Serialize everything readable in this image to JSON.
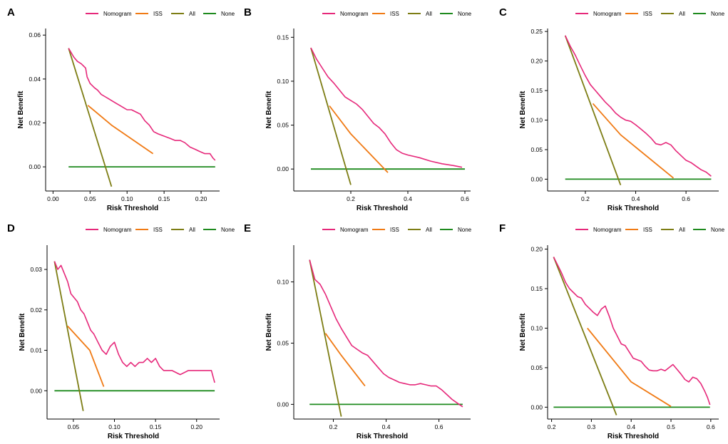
{
  "colors": {
    "Nomogram": "#e6287a",
    "ISS": "#f07a14",
    "All": "#7d7d14",
    "None": "#1e8a1e"
  },
  "chart_data": [
    {
      "panel": "A",
      "type": "line",
      "xlabel": "Risk Threshold",
      "ylabel": "Net Benefit",
      "xlim": [
        -0.01,
        0.225
      ],
      "ylim": [
        -0.011,
        0.063
      ],
      "xticks": [
        "0.00",
        "0.05",
        "0.10",
        "0.15",
        "0.20"
      ],
      "xtick_values": [
        0.0,
        0.05,
        0.1,
        0.15,
        0.2
      ],
      "yticks": [
        "0.00",
        "0.02",
        "0.04",
        "0.06"
      ],
      "ytick_values": [
        0.0,
        0.02,
        0.04,
        0.06
      ],
      "legend": [
        "Nomogram",
        "ISS",
        "All",
        "None"
      ],
      "series": [
        {
          "name": "Nomogram",
          "x": [
            0.021,
            0.028,
            0.033,
            0.038,
            0.044,
            0.046,
            0.05,
            0.056,
            0.06,
            0.065,
            0.07,
            0.075,
            0.08,
            0.085,
            0.09,
            0.095,
            0.1,
            0.106,
            0.112,
            0.118,
            0.124,
            0.13,
            0.136,
            0.142,
            0.15,
            0.158,
            0.165,
            0.172,
            0.178,
            0.185,
            0.192,
            0.198,
            0.205,
            0.212,
            0.216,
            0.219
          ],
          "y": [
            0.054,
            0.05,
            0.048,
            0.047,
            0.045,
            0.041,
            0.038,
            0.036,
            0.035,
            0.033,
            0.032,
            0.031,
            0.03,
            0.029,
            0.028,
            0.027,
            0.026,
            0.026,
            0.025,
            0.024,
            0.021,
            0.019,
            0.016,
            0.015,
            0.014,
            0.013,
            0.012,
            0.012,
            0.011,
            0.009,
            0.008,
            0.007,
            0.006,
            0.006,
            0.004,
            0.003
          ]
        },
        {
          "name": "ISS",
          "x": [
            0.047,
            0.079,
            0.135
          ],
          "y": [
            0.028,
            0.019,
            0.006
          ]
        },
        {
          "name": "All",
          "x": [
            0.021,
            0.079
          ],
          "y": [
            0.054,
            -0.009
          ]
        },
        {
          "name": "None",
          "x": [
            0.021,
            0.219
          ],
          "y": [
            0.0,
            0.0
          ]
        }
      ]
    },
    {
      "panel": "B",
      "type": "line",
      "xlabel": "Risk Threshold",
      "ylabel": "Net Benefit",
      "xlim": [
        0.0,
        0.62
      ],
      "ylim": [
        -0.025,
        0.16
      ],
      "xticks": [
        "0.2",
        "0.4",
        "0.6"
      ],
      "xtick_values": [
        0.2,
        0.4,
        0.6
      ],
      "yticks": [
        "0.00",
        "0.05",
        "0.10",
        "0.15"
      ],
      "ytick_values": [
        0.0,
        0.05,
        0.1,
        0.15
      ],
      "legend": [
        "Nomogram",
        "ISS",
        "All",
        "None"
      ],
      "series": [
        {
          "name": "Nomogram",
          "x": [
            0.06,
            0.08,
            0.1,
            0.12,
            0.14,
            0.16,
            0.18,
            0.2,
            0.22,
            0.24,
            0.26,
            0.28,
            0.3,
            0.32,
            0.34,
            0.36,
            0.38,
            0.4,
            0.44,
            0.48,
            0.52,
            0.56,
            0.59
          ],
          "y": [
            0.138,
            0.125,
            0.115,
            0.105,
            0.098,
            0.09,
            0.082,
            0.078,
            0.074,
            0.068,
            0.06,
            0.052,
            0.047,
            0.04,
            0.03,
            0.022,
            0.018,
            0.016,
            0.013,
            0.009,
            0.006,
            0.004,
            0.002
          ]
        },
        {
          "name": "ISS",
          "x": [
            0.125,
            0.2,
            0.33
          ],
          "y": [
            0.072,
            0.04,
            -0.004
          ]
        },
        {
          "name": "All",
          "x": [
            0.06,
            0.2
          ],
          "y": [
            0.138,
            -0.018
          ]
        },
        {
          "name": "None",
          "x": [
            0.06,
            0.6
          ],
          "y": [
            0.0,
            0.0
          ]
        }
      ]
    },
    {
      "panel": "C",
      "type": "line",
      "xlabel": "Risk Threshold",
      "ylabel": "Net Benefit",
      "xlim": [
        0.05,
        0.73
      ],
      "ylim": [
        -0.02,
        0.255
      ],
      "xticks": [
        "0.2",
        "0.4",
        "0.6"
      ],
      "xtick_values": [
        0.2,
        0.4,
        0.6
      ],
      "yticks": [
        "0.00",
        "0.05",
        "0.10",
        "0.15",
        "0.20",
        "0.25"
      ],
      "ytick_values": [
        0.0,
        0.05,
        0.1,
        0.15,
        0.2,
        0.25
      ],
      "legend": [
        "Nomogram",
        "ISS",
        "All",
        "None"
      ],
      "series": [
        {
          "name": "Nomogram",
          "x": [
            0.12,
            0.14,
            0.16,
            0.18,
            0.2,
            0.22,
            0.24,
            0.26,
            0.28,
            0.3,
            0.32,
            0.34,
            0.36,
            0.38,
            0.4,
            0.42,
            0.44,
            0.46,
            0.48,
            0.5,
            0.52,
            0.54,
            0.56,
            0.58,
            0.6,
            0.62,
            0.64,
            0.66,
            0.68,
            0.7
          ],
          "y": [
            0.243,
            0.225,
            0.21,
            0.192,
            0.175,
            0.16,
            0.15,
            0.14,
            0.13,
            0.122,
            0.112,
            0.105,
            0.1,
            0.098,
            0.092,
            0.085,
            0.078,
            0.07,
            0.06,
            0.058,
            0.062,
            0.058,
            0.048,
            0.04,
            0.032,
            0.028,
            0.022,
            0.016,
            0.012,
            0.005
          ]
        },
        {
          "name": "ISS",
          "x": [
            0.23,
            0.34,
            0.55
          ],
          "y": [
            0.128,
            0.075,
            0.002
          ]
        },
        {
          "name": "All",
          "x": [
            0.12,
            0.34
          ],
          "y": [
            0.243,
            -0.01
          ]
        },
        {
          "name": "None",
          "x": [
            0.12,
            0.7
          ],
          "y": [
            0.0,
            0.0
          ]
        }
      ]
    },
    {
      "panel": "D",
      "type": "line",
      "xlabel": "Risk Threshold",
      "ylabel": "Net Benefit",
      "xlim": [
        0.018,
        0.228
      ],
      "ylim": [
        -0.007,
        0.036
      ],
      "xticks": [
        "0.05",
        "0.10",
        "0.15",
        "0.20"
      ],
      "xtick_values": [
        0.05,
        0.1,
        0.15,
        0.2
      ],
      "yticks": [
        "0.00",
        "0.01",
        "0.02",
        "0.03"
      ],
      "ytick_values": [
        0.0,
        0.01,
        0.02,
        0.03
      ],
      "legend": [
        "Nomogram",
        "ISS",
        "All",
        "None"
      ],
      "series": [
        {
          "name": "Nomogram",
          "x": [
            0.027,
            0.031,
            0.035,
            0.039,
            0.043,
            0.047,
            0.051,
            0.055,
            0.059,
            0.063,
            0.067,
            0.071,
            0.075,
            0.08,
            0.085,
            0.09,
            0.095,
            0.1,
            0.105,
            0.11,
            0.115,
            0.12,
            0.125,
            0.13,
            0.135,
            0.14,
            0.145,
            0.15,
            0.155,
            0.16,
            0.17,
            0.18,
            0.19,
            0.2,
            0.21,
            0.218,
            0.222
          ],
          "y": [
            0.032,
            0.03,
            0.031,
            0.029,
            0.027,
            0.024,
            0.023,
            0.022,
            0.02,
            0.019,
            0.017,
            0.015,
            0.014,
            0.012,
            0.01,
            0.009,
            0.011,
            0.012,
            0.009,
            0.007,
            0.006,
            0.007,
            0.006,
            0.007,
            0.007,
            0.008,
            0.007,
            0.008,
            0.006,
            0.005,
            0.005,
            0.004,
            0.005,
            0.005,
            0.005,
            0.005,
            0.002
          ]
        },
        {
          "name": "ISS",
          "x": [
            0.043,
            0.07,
            0.087
          ],
          "y": [
            0.016,
            0.01,
            0.001
          ]
        },
        {
          "name": "All",
          "x": [
            0.027,
            0.062
          ],
          "y": [
            0.032,
            -0.005
          ]
        },
        {
          "name": "None",
          "x": [
            0.027,
            0.222
          ],
          "y": [
            0.0,
            0.0
          ]
        }
      ]
    },
    {
      "panel": "E",
      "type": "line",
      "xlabel": "Risk Threshold",
      "ylabel": "Net Benefit",
      "xlim": [
        0.05,
        0.72
      ],
      "ylim": [
        -0.012,
        0.13
      ],
      "xticks": [
        "0.2",
        "0.4",
        "0.6"
      ],
      "xtick_values": [
        0.2,
        0.4,
        0.6
      ],
      "yticks": [
        "0.00",
        "0.05",
        "0.10"
      ],
      "ytick_values": [
        0.0,
        0.05,
        0.1
      ],
      "legend": [
        "Nomogram",
        "ISS",
        "All",
        "None"
      ],
      "series": [
        {
          "name": "Nomogram",
          "x": [
            0.11,
            0.13,
            0.15,
            0.17,
            0.19,
            0.21,
            0.23,
            0.25,
            0.27,
            0.29,
            0.31,
            0.33,
            0.35,
            0.37,
            0.39,
            0.41,
            0.43,
            0.45,
            0.47,
            0.49,
            0.51,
            0.53,
            0.55,
            0.57,
            0.59,
            0.61,
            0.63,
            0.65,
            0.67,
            0.69
          ],
          "y": [
            0.118,
            0.102,
            0.098,
            0.09,
            0.08,
            0.07,
            0.062,
            0.055,
            0.048,
            0.045,
            0.042,
            0.04,
            0.035,
            0.03,
            0.025,
            0.022,
            0.02,
            0.018,
            0.017,
            0.016,
            0.016,
            0.017,
            0.016,
            0.015,
            0.015,
            0.012,
            0.008,
            0.004,
            0.001,
            -0.002
          ]
        },
        {
          "name": "ISS",
          "x": [
            0.17,
            0.23,
            0.32
          ],
          "y": [
            0.058,
            0.04,
            0.015
          ]
        },
        {
          "name": "All",
          "x": [
            0.11,
            0.23
          ],
          "y": [
            0.118,
            -0.01
          ]
        },
        {
          "name": "None",
          "x": [
            0.11,
            0.69
          ],
          "y": [
            0.0,
            0.0
          ]
        }
      ]
    },
    {
      "panel": "F",
      "type": "line",
      "xlabel": "Risk Threshold",
      "ylabel": "Net Benefit",
      "xlim": [
        0.19,
        0.62
      ],
      "ylim": [
        -0.015,
        0.205
      ],
      "xticks": [
        "0.2",
        "0.3",
        "0.4",
        "0.5",
        "0.6"
      ],
      "xtick_values": [
        0.2,
        0.3,
        0.4,
        0.5,
        0.6
      ],
      "yticks": [
        "0.00",
        "0.05",
        "0.10",
        "0.15",
        "0.20"
      ],
      "ytick_values": [
        0.0,
        0.05,
        0.1,
        0.15,
        0.2
      ],
      "legend": [
        "Nomogram",
        "ISS",
        "All",
        "None"
      ],
      "series": [
        {
          "name": "Nomogram",
          "x": [
            0.205,
            0.215,
            0.225,
            0.235,
            0.245,
            0.255,
            0.265,
            0.275,
            0.285,
            0.295,
            0.305,
            0.315,
            0.325,
            0.335,
            0.345,
            0.355,
            0.365,
            0.375,
            0.385,
            0.395,
            0.405,
            0.415,
            0.425,
            0.435,
            0.445,
            0.455,
            0.465,
            0.475,
            0.485,
            0.495,
            0.505,
            0.515,
            0.525,
            0.535,
            0.545,
            0.555,
            0.565,
            0.575,
            0.585,
            0.592,
            0.598
          ],
          "y": [
            0.19,
            0.18,
            0.17,
            0.158,
            0.15,
            0.145,
            0.14,
            0.138,
            0.13,
            0.125,
            0.12,
            0.116,
            0.124,
            0.128,
            0.115,
            0.1,
            0.09,
            0.08,
            0.078,
            0.07,
            0.062,
            0.06,
            0.058,
            0.052,
            0.047,
            0.046,
            0.046,
            0.048,
            0.046,
            0.05,
            0.054,
            0.048,
            0.042,
            0.035,
            0.032,
            0.038,
            0.036,
            0.03,
            0.02,
            0.012,
            0.003
          ]
        },
        {
          "name": "ISS",
          "x": [
            0.29,
            0.4,
            0.5
          ],
          "y": [
            0.1,
            0.032,
            0.001
          ]
        },
        {
          "name": "All",
          "x": [
            0.205,
            0.363
          ],
          "y": [
            0.19,
            -0.01
          ]
        },
        {
          "name": "None",
          "x": [
            0.205,
            0.598
          ],
          "y": [
            0.0,
            0.0
          ]
        }
      ]
    }
  ]
}
